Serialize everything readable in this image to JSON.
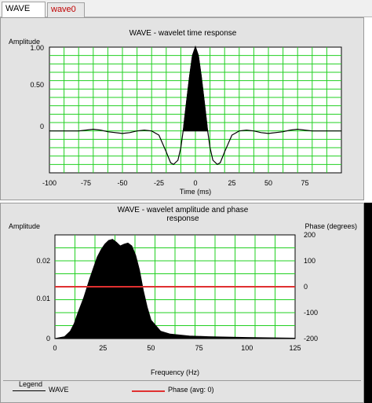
{
  "tabs": [
    {
      "label": "WAVE",
      "active": true
    },
    {
      "label": "wave0",
      "active": false
    }
  ],
  "time_chart": {
    "title": "WAVE - wavelet time response",
    "ylabel": "Amplitude",
    "xlabel": "Time (ms)",
    "xlim": [
      -100,
      100
    ],
    "ylim": [
      -0.5,
      1.0
    ],
    "x_ticks": [
      "-100",
      "-75",
      "-50",
      "-25",
      "0",
      "25",
      "50",
      "75"
    ],
    "y_ticks": [
      "1.00",
      "0.50",
      "0"
    ]
  },
  "freq_chart": {
    "title_line1": "WAVE - wavelet amplitude and phase",
    "title_line2": "response",
    "ylabel": "Amplitude",
    "y2label": "Phase (degrees)",
    "xlabel": "Frequency (Hz)",
    "x_ticks": [
      "0",
      "25",
      "50",
      "75",
      "100",
      "125"
    ],
    "y_ticks": [
      "0.02",
      "0.01",
      "0"
    ],
    "y2_ticks": [
      "200",
      "100",
      "0",
      "-100",
      "-200"
    ]
  },
  "legend": {
    "title": "Legend",
    "items": [
      {
        "label": "WAVE",
        "color": "#000000"
      },
      {
        "label": "Phase (avg: 0)",
        "color": "#e03030"
      }
    ]
  },
  "colors": {
    "grid": "#22d022",
    "phase": "#e03030",
    "fill": "#000000"
  },
  "chart_data": [
    {
      "type": "line",
      "x": [
        -100,
        -80,
        -75,
        -70,
        -65,
        -60,
        -50,
        -45,
        -40,
        -35,
        -30,
        -25,
        -20,
        -17,
        -15,
        -12,
        -10,
        -8,
        -6,
        -4,
        -2,
        0,
        2,
        4,
        6,
        8,
        10,
        12,
        15,
        17,
        20,
        25,
        30,
        35,
        40,
        45,
        50,
        60,
        65,
        70,
        75,
        80,
        100
      ],
      "series": [
        {
          "values": [
            0,
            0,
            0.01,
            0.02,
            0.01,
            -0.01,
            -0.03,
            -0.02,
            0.0,
            0.01,
            0.0,
            -0.05,
            -0.25,
            -0.38,
            -0.4,
            -0.35,
            -0.2,
            0.05,
            0.35,
            0.65,
            0.9,
            1.0,
            0.9,
            0.65,
            0.35,
            0.05,
            -0.2,
            -0.35,
            -0.4,
            -0.38,
            -0.25,
            -0.05,
            0.0,
            0.01,
            0.0,
            -0.02,
            -0.03,
            -0.01,
            0.01,
            0.02,
            0.01,
            0,
            0
          ]
        }
      ],
      "title": "WAVE - wavelet time response",
      "xlabel": "Time (ms)",
      "ylabel": "Amplitude",
      "xlim": [
        -100,
        100
      ],
      "ylim": [
        -0.5,
        1.0
      ],
      "grid": true
    },
    {
      "type": "area",
      "x": [
        0,
        5,
        8,
        10,
        12,
        15,
        18,
        20,
        22,
        24,
        26,
        28,
        30,
        32,
        34,
        36,
        38,
        40,
        42,
        44,
        46,
        48,
        50,
        55,
        60,
        70,
        80,
        100,
        125
      ],
      "series": [
        {
          "name": "WAVE",
          "values": [
            0,
            0.0005,
            0.002,
            0.004,
            0.007,
            0.011,
            0.016,
            0.019,
            0.022,
            0.024,
            0.0255,
            0.0265,
            0.0268,
            0.026,
            0.025,
            0.0255,
            0.0258,
            0.025,
            0.0225,
            0.0185,
            0.013,
            0.0085,
            0.005,
            0.002,
            0.0012,
            0.0007,
            0.0005,
            0.0003,
            0.0001
          ]
        },
        {
          "name": "Phase (avg: 0)",
          "axis": "right",
          "values": [
            0,
            0,
            0,
            0,
            0,
            0,
            0,
            0,
            0,
            0,
            0,
            0,
            0,
            0,
            0,
            0,
            0,
            0,
            0,
            0,
            0,
            0,
            0,
            0,
            0,
            0,
            0,
            0,
            0
          ]
        }
      ],
      "title": "WAVE - wavelet amplitude and phase response",
      "xlabel": "Frequency (Hz)",
      "ylabel": "Amplitude",
      "y2label": "Phase (degrees)",
      "xlim": [
        0,
        125
      ],
      "ylim": [
        0,
        0.028
      ],
      "y2lim": [
        -200,
        200
      ],
      "grid": true,
      "legend": "bottom"
    }
  ]
}
